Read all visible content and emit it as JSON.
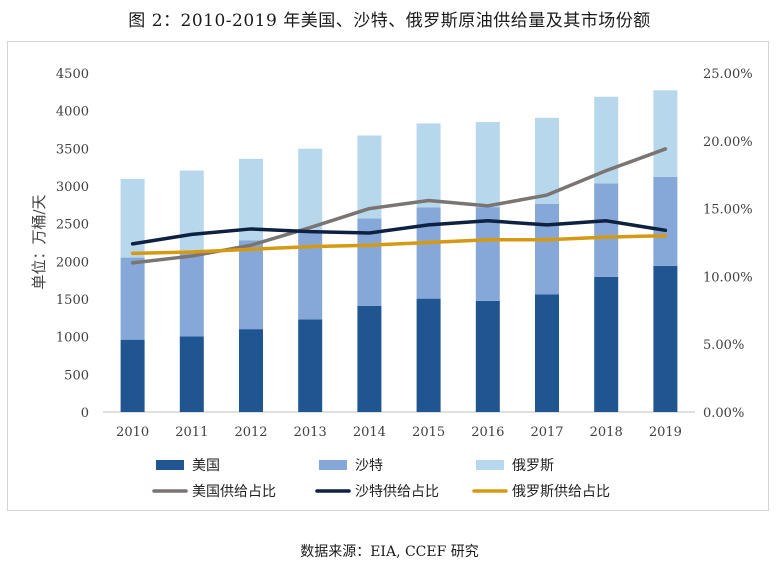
{
  "title": "图 2：2010-2019 年美国、沙特、俄罗斯原油供给量及其市场份额",
  "source": "数据来源：EIA, CCEF 研究",
  "chart_data": {
    "type": "bar",
    "stacked": true,
    "ylabel": "单位：万桶/天",
    "ylim": [
      0,
      4500
    ],
    "yticks": [
      "0",
      "500",
      "1000",
      "1500",
      "2000",
      "2500",
      "3000",
      "3500",
      "4000",
      "4500"
    ],
    "y2lim": [
      0,
      25
    ],
    "y2ticks": [
      "0.00%",
      "5.00%",
      "10.00%",
      "15.00%",
      "20.00%",
      "25.00%"
    ],
    "categories": [
      "2010",
      "2011",
      "2012",
      "2013",
      "2014",
      "2015",
      "2016",
      "2017",
      "2018",
      "2019"
    ],
    "series": [
      {
        "name": "美国",
        "type": "bar",
        "color": "#1f5591",
        "values": [
          960,
          1005,
          1100,
          1230,
          1410,
          1505,
          1475,
          1560,
          1795,
          1940
        ]
      },
      {
        "name": "沙特",
        "type": "bar",
        "color": "#86a8d8",
        "values": [
          1090,
          1140,
          1180,
          1180,
          1160,
          1210,
          1245,
          1205,
          1240,
          1180
        ]
      },
      {
        "name": "俄罗斯",
        "type": "bar",
        "color": "#b7d7ed",
        "values": [
          1045,
          1060,
          1080,
          1085,
          1100,
          1115,
          1130,
          1140,
          1150,
          1150
        ]
      },
      {
        "name": "美国供给占比",
        "type": "line",
        "axis": "right",
        "color": "#7a7573",
        "values": [
          11.0,
          11.5,
          12.3,
          13.6,
          15.0,
          15.6,
          15.2,
          16.0,
          17.8,
          19.4
        ]
      },
      {
        "name": "沙特供给占比",
        "type": "line",
        "axis": "right",
        "color": "#0e2141",
        "values": [
          12.4,
          13.1,
          13.5,
          13.3,
          13.2,
          13.8,
          14.1,
          13.8,
          14.1,
          13.4
        ]
      },
      {
        "name": "俄罗斯供给占比",
        "type": "line",
        "axis": "right",
        "color": "#d69a12",
        "values": [
          11.7,
          11.8,
          12.0,
          12.2,
          12.3,
          12.5,
          12.7,
          12.7,
          12.9,
          13.0
        ]
      }
    ],
    "legend_position": "bottom",
    "grid": false
  }
}
